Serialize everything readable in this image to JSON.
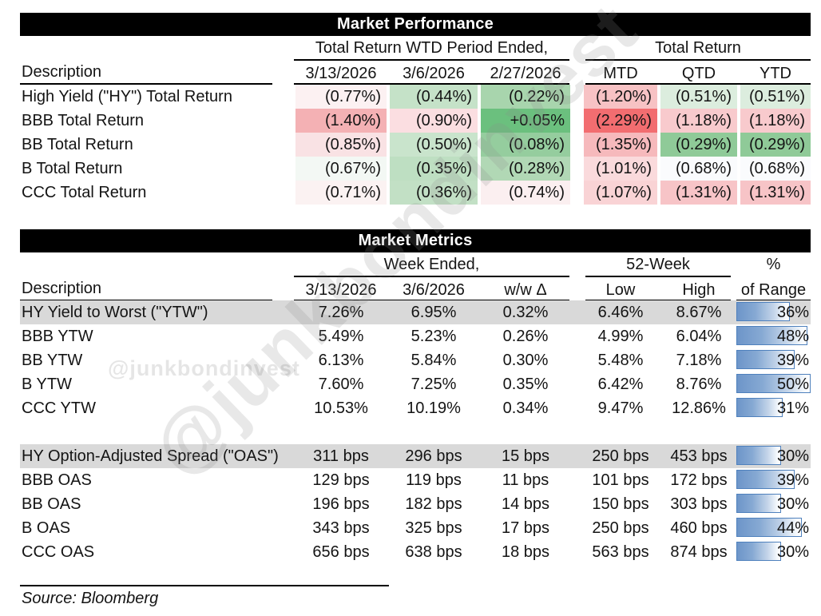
{
  "watermark": {
    "small_text": "@junkbondinvest",
    "large_text": "@junkbondinvest"
  },
  "source_note": "Source: Bloomberg",
  "colors": {
    "bar_fill": "#6d95c9",
    "bar_border": "#4f81bd",
    "highlight_row": "#d9d9d9",
    "header_bar": "#000000",
    "strong_red": "#f26d70",
    "strong_green": "#6bc07e"
  },
  "performance": {
    "title": "Market Performance",
    "group1_header": "Total Return WTD Period Ended,",
    "group2_header": "Total Return",
    "desc_header": "Description",
    "wtd_columns": [
      "3/13/2026",
      "3/6/2026",
      "2/27/2026"
    ],
    "tr_columns": [
      "MTD",
      "QTD",
      "YTD"
    ],
    "rows": [
      {
        "label": "High Yield (\"HY\") Total Return",
        "cells": [
          {
            "text": "(0.77%)",
            "bg": "#fcf1f2"
          },
          {
            "text": "(0.44%)",
            "bg": "#c5e2c8"
          },
          {
            "text": "(0.22%)",
            "bg": "#a8d5ad"
          },
          {
            "text": "(1.20%)",
            "bg": "#f7c2c4"
          },
          {
            "text": "(0.51%)",
            "bg": "#dcedde"
          },
          {
            "text": "(0.51%)",
            "bg": "#dcedde"
          }
        ]
      },
      {
        "label": "BBB Total Return",
        "cells": [
          {
            "text": "(1.40%)",
            "bg": "#f4b1b4"
          },
          {
            "text": "(0.90%)",
            "bg": "#fbdee1"
          },
          {
            "text": "+0.05%",
            "bg": "#6bc07e"
          },
          {
            "text": "(2.29%)",
            "bg": "#f26d70"
          },
          {
            "text": "(1.18%)",
            "bg": "#f8cacd"
          },
          {
            "text": "(1.18%)",
            "bg": "#f8cacd"
          }
        ]
      },
      {
        "label": "BB Total Return",
        "cells": [
          {
            "text": "(0.85%)",
            "bg": "#f9e2e4"
          },
          {
            "text": "(0.50%)",
            "bg": "#c9e4cc"
          },
          {
            "text": "(0.08%)",
            "bg": "#95cd9e"
          },
          {
            "text": "(1.35%)",
            "bg": "#f6b9bc"
          },
          {
            "text": "(0.29%)",
            "bg": "#8fca98"
          },
          {
            "text": "(0.29%)",
            "bg": "#8fca98"
          }
        ]
      },
      {
        "label": "B Total Return",
        "cells": [
          {
            "text": "(0.67%)",
            "bg": "#f3f8f4"
          },
          {
            "text": "(0.35%)",
            "bg": "#bedfc2"
          },
          {
            "text": "(0.28%)",
            "bg": "#b1d8b5"
          },
          {
            "text": "(1.01%)",
            "bg": "#fadadc"
          },
          {
            "text": "(0.68%)",
            "bg": "#fafbfd"
          },
          {
            "text": "(0.68%)",
            "bg": "#fafbfd"
          }
        ]
      },
      {
        "label": "CCC Total Return",
        "cells": [
          {
            "text": "(0.71%)",
            "bg": "#fbf2f2"
          },
          {
            "text": "(0.36%)",
            "bg": "#c2e0c5"
          },
          {
            "text": "(0.74%)",
            "bg": "#fbeff0"
          },
          {
            "text": "(1.07%)",
            "bg": "#f9d3d5"
          },
          {
            "text": "(1.31%)",
            "bg": "#f7c4c7"
          },
          {
            "text": "(1.31%)",
            "bg": "#f7c4c7"
          }
        ]
      }
    ]
  },
  "metrics": {
    "title": "Market Metrics",
    "group1_header": "Week Ended,",
    "group2_header": "52-Week",
    "group3_header": "%",
    "desc_header": "Description",
    "columns": [
      "3/13/2026",
      "3/6/2026",
      "w/w Δ",
      "Low",
      "High",
      "of Range"
    ],
    "ytw_rows": [
      {
        "label": "HY Yield to Worst (\"YTW\")",
        "highlight": true,
        "values": [
          "7.26%",
          "6.95%",
          "0.32%",
          "6.46%",
          "8.67%"
        ],
        "range_pct": 36
      },
      {
        "label": "BBB YTW",
        "highlight": false,
        "values": [
          "5.49%",
          "5.23%",
          "0.26%",
          "4.99%",
          "6.04%"
        ],
        "range_pct": 48
      },
      {
        "label": "BB YTW",
        "highlight": false,
        "values": [
          "6.13%",
          "5.84%",
          "0.30%",
          "5.48%",
          "7.18%"
        ],
        "range_pct": 39
      },
      {
        "label": "B YTW",
        "highlight": false,
        "values": [
          "7.60%",
          "7.25%",
          "0.35%",
          "6.42%",
          "8.76%"
        ],
        "range_pct": 50
      },
      {
        "label": "CCC YTW",
        "highlight": false,
        "values": [
          "10.53%",
          "10.19%",
          "0.34%",
          "9.47%",
          "12.86%"
        ],
        "range_pct": 31
      }
    ],
    "oas_rows": [
      {
        "label": "HY Option-Adjusted Spread (\"OAS\")",
        "highlight": true,
        "values": [
          "311 bps",
          "296 bps",
          "15 bps",
          "250 bps",
          "453 bps"
        ],
        "range_pct": 30
      },
      {
        "label": "BBB OAS",
        "highlight": false,
        "values": [
          "129 bps",
          "119 bps",
          "11 bps",
          "101 bps",
          "172 bps"
        ],
        "range_pct": 39
      },
      {
        "label": "BB OAS",
        "highlight": false,
        "values": [
          "196 bps",
          "182 bps",
          "14 bps",
          "150 bps",
          "303 bps"
        ],
        "range_pct": 30
      },
      {
        "label": "B OAS",
        "highlight": false,
        "values": [
          "343 bps",
          "325 bps",
          "17 bps",
          "250 bps",
          "460 bps"
        ],
        "range_pct": 44
      },
      {
        "label": "CCC OAS",
        "highlight": false,
        "values": [
          "656 bps",
          "638 bps",
          "18 bps",
          "563 bps",
          "874 bps"
        ],
        "range_pct": 30
      }
    ]
  },
  "chart_data": [
    {
      "type": "table",
      "title": "Market Performance",
      "column_groups": [
        "Total Return WTD Period Ended,",
        "Total Return"
      ],
      "columns": [
        "Description",
        "3/13/2026",
        "3/6/2026",
        "2/27/2026",
        "MTD",
        "QTD",
        "YTD"
      ],
      "rows": [
        [
          "High Yield (\"HY\") Total Return",
          "(0.77%)",
          "(0.44%)",
          "(0.22%)",
          "(1.20%)",
          "(0.51%)",
          "(0.51%)"
        ],
        [
          "BBB Total Return",
          "(1.40%)",
          "(0.90%)",
          "+0.05%",
          "(2.29%)",
          "(1.18%)",
          "(1.18%)"
        ],
        [
          "BB Total Return",
          "(0.85%)",
          "(0.50%)",
          "(0.08%)",
          "(1.35%)",
          "(0.29%)",
          "(0.29%)"
        ],
        [
          "B Total Return",
          "(0.67%)",
          "(0.35%)",
          "(0.28%)",
          "(1.01%)",
          "(0.68%)",
          "(0.68%)"
        ],
        [
          "CCC Total Return",
          "(0.71%)",
          "(0.36%)",
          "(0.74%)",
          "(1.07%)",
          "(1.31%)",
          "(1.31%)"
        ]
      ],
      "notes": "Cells shaded with red-white-green heatmap scale"
    },
    {
      "type": "table",
      "title": "Market Metrics",
      "column_groups": [
        "Week Ended,",
        "52-Week",
        "%"
      ],
      "columns": [
        "Description",
        "3/13/2026",
        "3/6/2026",
        "w/w Δ",
        "Low",
        "High",
        "% of Range"
      ],
      "rows": [
        [
          "HY Yield to Worst (\"YTW\")",
          "7.26%",
          "6.95%",
          "0.32%",
          "6.46%",
          "8.67%",
          "36%"
        ],
        [
          "BBB YTW",
          "5.49%",
          "5.23%",
          "0.26%",
          "4.99%",
          "6.04%",
          "48%"
        ],
        [
          "BB YTW",
          "6.13%",
          "5.84%",
          "0.30%",
          "5.48%",
          "7.18%",
          "39%"
        ],
        [
          "B YTW",
          "7.60%",
          "7.25%",
          "0.35%",
          "6.42%",
          "8.76%",
          "50%"
        ],
        [
          "CCC YTW",
          "10.53%",
          "10.19%",
          "0.34%",
          "9.47%",
          "12.86%",
          "31%"
        ],
        [
          "HY Option-Adjusted Spread (\"OAS\")",
          "311 bps",
          "296 bps",
          "15 bps",
          "250 bps",
          "453 bps",
          "30%"
        ],
        [
          "BBB OAS",
          "129 bps",
          "119 bps",
          "11 bps",
          "101 bps",
          "172 bps",
          "39%"
        ],
        [
          "BB OAS",
          "196 bps",
          "182 bps",
          "14 bps",
          "150 bps",
          "303 bps",
          "30%"
        ],
        [
          "B OAS",
          "343 bps",
          "325 bps",
          "17 bps",
          "250 bps",
          "460 bps",
          "44%"
        ],
        [
          "CCC OAS",
          "656 bps",
          "638 bps",
          "18 bps",
          "563 bps",
          "874 bps",
          "30%"
        ]
      ],
      "notes": "% of Range rendered as blue gradient data bars scaled 0-50%"
    }
  ]
}
